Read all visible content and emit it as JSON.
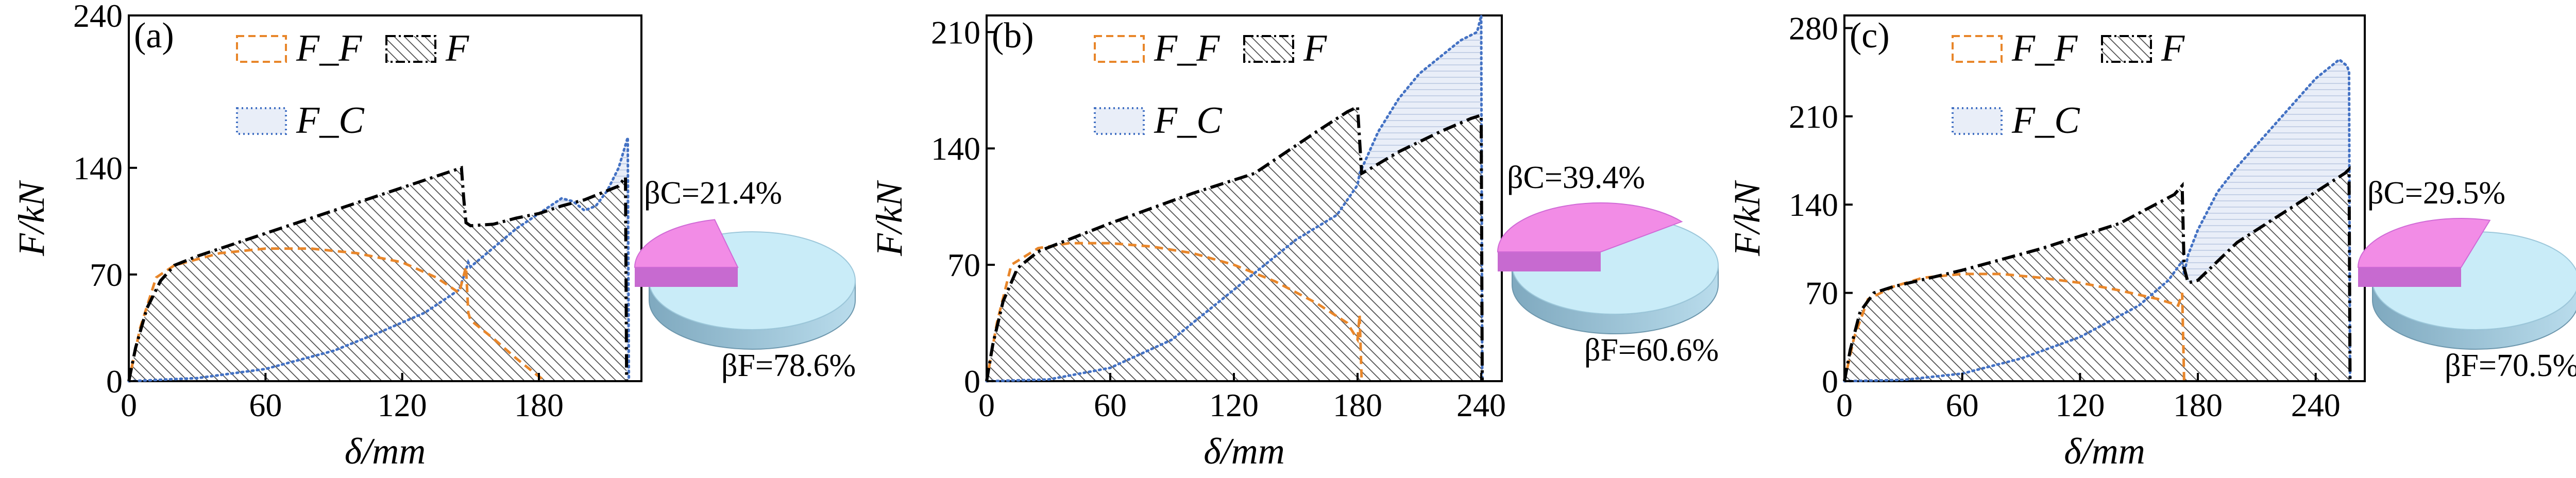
{
  "chart_data": [
    {
      "type": "area",
      "panel_label": "(a)",
      "xlabel": "δ/mm",
      "ylabel": "F/kN",
      "xlim": [
        0,
        225
      ],
      "ylim": [
        0,
        240
      ],
      "xticks": [
        "0",
        "60",
        "120",
        "180"
      ],
      "xtick_values": [
        0,
        60,
        120,
        180
      ],
      "yticks": [
        "0",
        "70",
        "140",
        "240"
      ],
      "ytick_values": [
        0,
        70,
        140,
        240
      ],
      "legend": [
        "F_F",
        "F",
        "F_C"
      ],
      "series": [
        {
          "name": "F",
          "style": "dash-dot black",
          "x": [
            0,
            3,
            8,
            14,
            20,
            30,
            60,
            90,
            120,
            140,
            146,
            147,
            148,
            150,
            160,
            170,
            180,
            190,
            200,
            210,
            215,
            218,
            218.5
          ],
          "y": [
            0,
            22,
            48,
            66,
            76,
            82,
            97,
            112,
            127,
            137,
            140,
            120,
            104,
            102,
            103,
            107,
            110,
            115,
            119,
            125,
            128,
            134,
            0
          ]
        },
        {
          "name": "F_F",
          "style": "dashed orange",
          "color": "#e8862a",
          "x": [
            0,
            5,
            12,
            20,
            40,
            60,
            80,
            100,
            120,
            135,
            145,
            148,
            149,
            150,
            160,
            170,
            180,
            183
          ],
          "y": [
            0,
            35,
            68,
            76,
            84,
            87,
            87,
            84,
            78,
            68,
            58,
            75,
            45,
            40,
            28,
            15,
            3,
            0
          ]
        },
        {
          "name": "F_C",
          "style": "dotted blue",
          "color": "#4472c4",
          "x": [
            0,
            30,
            60,
            90,
            110,
            130,
            145,
            148,
            149,
            150,
            170,
            190,
            195,
            200,
            205,
            210,
            215,
            219,
            219.5
          ],
          "y": [
            0,
            2,
            8,
            20,
            32,
            45,
            60,
            73,
            78,
            75,
            100,
            120,
            118,
            112,
            115,
            125,
            140,
            160,
            0
          ]
        }
      ],
      "pie": {
        "beta_C": "βC=21.4%",
        "beta_F": "βF=78.6%",
        "values": [
          21.4,
          78.6
        ]
      }
    },
    {
      "type": "area",
      "panel_label": "(b)",
      "xlabel": "δ/mm",
      "ylabel": "F/kN",
      "xlim": [
        0,
        250
      ],
      "ylim": [
        0,
        220
      ],
      "xticks": [
        "0",
        "60",
        "120",
        "180",
        "240"
      ],
      "xtick_values": [
        0,
        60,
        120,
        180,
        240
      ],
      "yticks": [
        "0",
        "70",
        "140",
        "210"
      ],
      "yticks_values": [
        0,
        70,
        140,
        210
      ],
      "ytick_values": [
        0,
        70,
        140,
        210
      ],
      "legend": [
        "F_F",
        "F",
        "F_C"
      ],
      "series": [
        {
          "name": "F",
          "style": "dash-dot black",
          "x": [
            0,
            3,
            8,
            15,
            25,
            60,
            100,
            130,
            160,
            175,
            180,
            181,
            182,
            185,
            200,
            220,
            235,
            240,
            240.5
          ],
          "y": [
            0,
            22,
            48,
            68,
            78,
            95,
            113,
            125,
            150,
            162,
            165,
            145,
            125,
            127,
            138,
            150,
            158,
            160,
            0
          ]
        },
        {
          "name": "F_F",
          "style": "dashed orange",
          "color": "#e8862a",
          "x": [
            0,
            5,
            12,
            25,
            40,
            60,
            80,
            100,
            120,
            140,
            160,
            175,
            180,
            181,
            182
          ],
          "y": [
            0,
            35,
            70,
            80,
            83,
            83,
            81,
            77,
            70,
            60,
            47,
            35,
            25,
            40,
            0
          ]
        },
        {
          "name": "F_C",
          "style": "dotted blue",
          "color": "#4472c4",
          "x": [
            0,
            30,
            60,
            90,
            110,
            130,
            150,
            170,
            180,
            181,
            190,
            200,
            210,
            220,
            230,
            238,
            240,
            240.5
          ],
          "y": [
            0,
            1,
            8,
            25,
            45,
            65,
            85,
            100,
            118,
            125,
            150,
            170,
            185,
            195,
            205,
            210,
            220,
            0
          ]
        }
      ],
      "pie": {
        "beta_C": "βC=39.4%",
        "beta_F": "βF=60.6%",
        "values": [
          39.4,
          60.6
        ]
      }
    },
    {
      "type": "area",
      "panel_label": "(c)",
      "xlabel": "δ/mm",
      "ylabel": "F/kN",
      "xlim": [
        0,
        265
      ],
      "ylim": [
        0,
        290
      ],
      "xticks": [
        "0",
        "60",
        "120",
        "180",
        "240"
      ],
      "xtick_values": [
        0,
        60,
        120,
        180,
        240
      ],
      "yticks": [
        "0",
        "70",
        "140",
        "210",
        "280"
      ],
      "ytick_values": [
        0,
        70,
        140,
        210,
        280
      ],
      "legend": [
        "F_F",
        "F",
        "F_C"
      ],
      "series": [
        {
          "name": "F",
          "style": "dash-dot black",
          "x": [
            0,
            3,
            8,
            15,
            25,
            60,
            100,
            140,
            168,
            172,
            173,
            175,
            180,
            190,
            200,
            220,
            240,
            255,
            257,
            257.5
          ],
          "y": [
            0,
            25,
            55,
            70,
            75,
            88,
            105,
            125,
            148,
            155,
            90,
            78,
            80,
            95,
            110,
            130,
            150,
            165,
            168,
            0
          ]
        },
        {
          "name": "F_F",
          "style": "dashed orange",
          "color": "#e8862a",
          "x": [
            0,
            5,
            12,
            25,
            40,
            60,
            80,
            100,
            120,
            140,
            160,
            170,
            172,
            173
          ],
          "y": [
            0,
            35,
            65,
            75,
            82,
            85,
            85,
            82,
            78,
            72,
            65,
            60,
            70,
            0
          ]
        },
        {
          "name": "F_C",
          "style": "dotted blue",
          "color": "#4472c4",
          "x": [
            0,
            30,
            60,
            90,
            120,
            150,
            165,
            172,
            173,
            175,
            180,
            190,
            200,
            220,
            240,
            252,
            256,
            257,
            257.5
          ],
          "y": [
            0,
            1,
            6,
            18,
            35,
            60,
            80,
            95,
            85,
            100,
            120,
            150,
            170,
            205,
            240,
            255,
            250,
            245,
            0
          ]
        }
      ],
      "pie": {
        "beta_C": "βC=29.5%",
        "beta_F": "βF=70.5%",
        "values": [
          29.5,
          70.5
        ]
      }
    }
  ],
  "colors": {
    "ff": "#e8862a",
    "fc": "#4472c4",
    "pie_c": "#f28ce6",
    "pie_c_dark": "#c76ad0",
    "pie_f": "#c9ecf8",
    "pie_f_dark": "#8cb6ca"
  }
}
